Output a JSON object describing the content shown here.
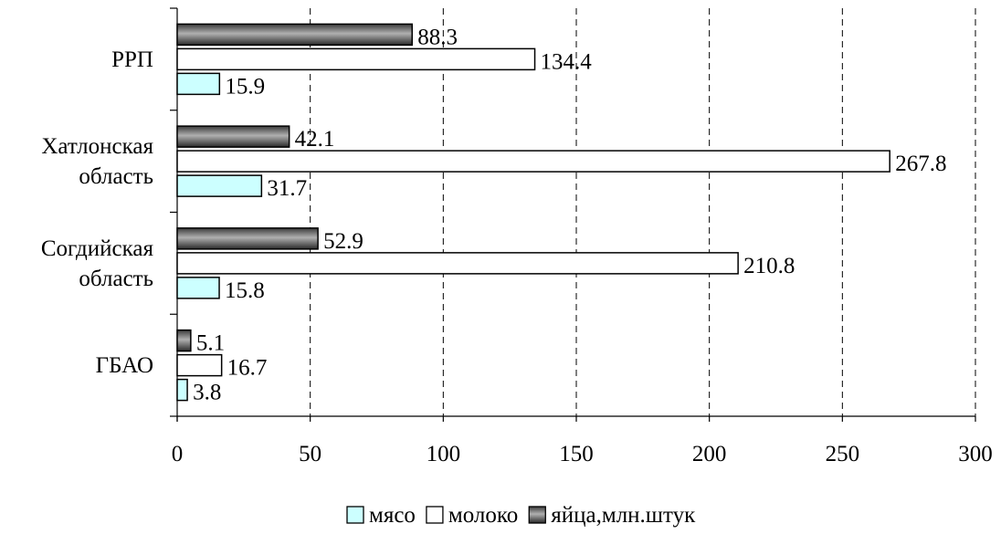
{
  "chart_data": {
    "type": "bar",
    "orientation": "horizontal",
    "categories": [
      [
        "ГБАО"
      ],
      [
        "Согдийская",
        "область"
      ],
      [
        "Хатлонская",
        "область"
      ],
      [
        "РРП"
      ]
    ],
    "series": [
      {
        "name": "мясо",
        "values": [
          3.8,
          15.8,
          31.7,
          15.9
        ],
        "color": "#ccffff"
      },
      {
        "name": "молоко",
        "values": [
          16.7,
          210.8,
          267.8,
          134.4
        ],
        "color": "#ffffff"
      },
      {
        "name": "яйца,млн.штук",
        "values": [
          5.1,
          52.9,
          42.1,
          88.3
        ],
        "color": "#606060"
      }
    ],
    "xlim": [
      0,
      300
    ],
    "xticks": [
      0,
      50,
      100,
      150,
      200,
      250,
      300
    ],
    "grid": "vertical dashed",
    "legend_position": "bottom",
    "title": "",
    "xlabel": "",
    "ylabel": ""
  }
}
